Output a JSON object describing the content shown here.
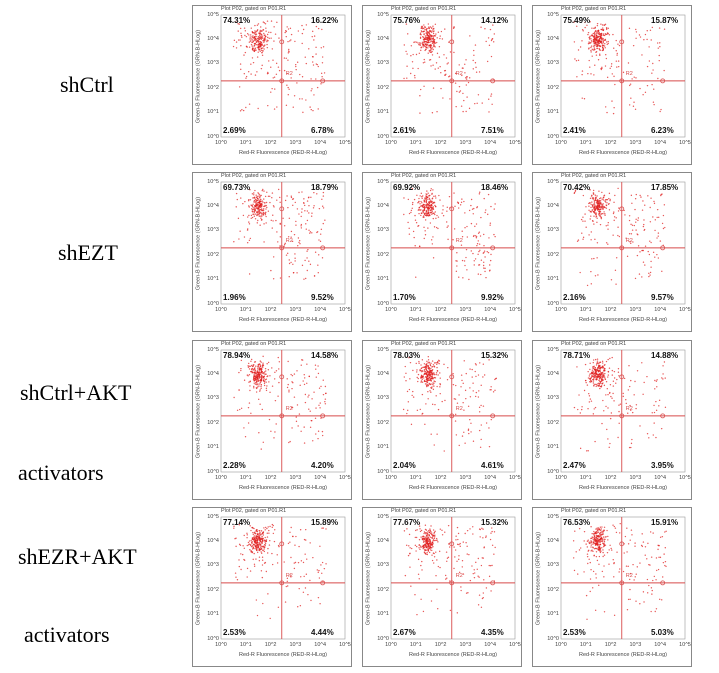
{
  "rows": [
    {
      "label": "shCtrl"
    },
    {
      "label": "shEZT"
    },
    {
      "label": "shCtrl+AKT",
      "label2": "activators"
    },
    {
      "label": "shEZR+AKT",
      "label2": "activators"
    }
  ],
  "plot_title": "Plot P02, gated on P01.R1",
  "region_label": "R2",
  "x_axis_label": "Red-R Fluorescence (RED-R-HLog)",
  "y_axis_label": "Green-B Fluorescence (GRN-B-HLog)",
  "colors": {
    "dots": "#e02020",
    "gate": "#d84a4a"
  },
  "chart_data": {
    "type": "scatter",
    "xlabel": "Red-R Fluorescence (RED-R-HLog)",
    "ylabel": "Green-B Fluorescence (GRN-B-HLog)",
    "xlim": [
      1,
      100000
    ],
    "ylim": [
      1,
      100000
    ],
    "tick_labels": [
      "10^0",
      "10^1",
      "10^2",
      "10^3",
      "10^4",
      "10^5"
    ],
    "panels": [
      {
        "row": "shCtrl",
        "rep": 1,
        "ul": "74.31%",
        "ur": "16.22%",
        "ll": "2.69%",
        "lr": "6.78%"
      },
      {
        "row": "shCtrl",
        "rep": 2,
        "ul": "75.76%",
        "ur": "14.12%",
        "ll": "2.61%",
        "lr": "7.51%"
      },
      {
        "row": "shCtrl",
        "rep": 3,
        "ul": "75.49%",
        "ur": "15.87%",
        "ll": "2.41%",
        "lr": "6.23%"
      },
      {
        "row": "shEZT",
        "rep": 1,
        "ul": "69.73%",
        "ur": "18.79%",
        "ll": "1.96%",
        "lr": "9.52%"
      },
      {
        "row": "shEZT",
        "rep": 2,
        "ul": "69.92%",
        "ur": "18.46%",
        "ll": "1.70%",
        "lr": "9.92%"
      },
      {
        "row": "shEZT",
        "rep": 3,
        "ul": "70.42%",
        "ur": "17.85%",
        "ll": "2.16%",
        "lr": "9.57%"
      },
      {
        "row": "shCtrl+AKT activators",
        "rep": 1,
        "ul": "78.94%",
        "ur": "14.58%",
        "ll": "2.28%",
        "lr": "4.20%"
      },
      {
        "row": "shCtrl+AKT activators",
        "rep": 2,
        "ul": "78.03%",
        "ur": "15.32%",
        "ll": "2.04%",
        "lr": "4.61%"
      },
      {
        "row": "shCtrl+AKT activators",
        "rep": 3,
        "ul": "78.71%",
        "ur": "14.88%",
        "ll": "2.47%",
        "lr": "3.95%"
      },
      {
        "row": "shEZR+AKT activators",
        "rep": 1,
        "ul": "77.14%",
        "ur": "15.89%",
        "ll": "2.53%",
        "lr": "4.44%"
      },
      {
        "row": "shEZR+AKT activators",
        "rep": 2,
        "ul": "77.67%",
        "ur": "15.32%",
        "ll": "2.67%",
        "lr": "4.35%"
      },
      {
        "row": "shEZR+AKT activators",
        "rep": 3,
        "ul": "76.53%",
        "ur": "15.91%",
        "ll": "2.53%",
        "lr": "5.03%"
      }
    ]
  }
}
